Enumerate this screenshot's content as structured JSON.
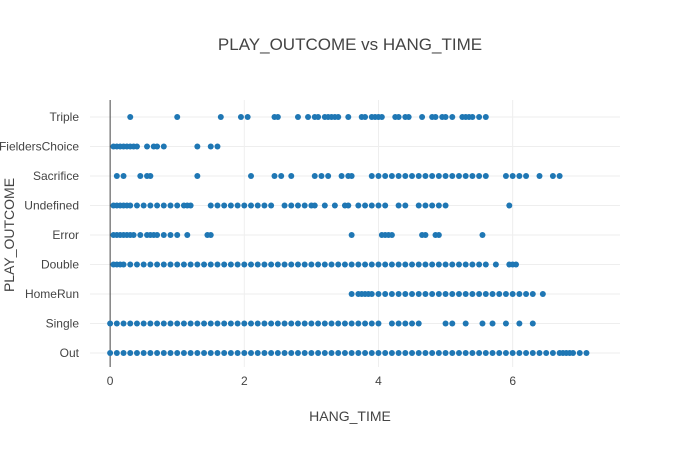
{
  "chart_data": {
    "type": "scatter",
    "title": "PLAY_OUTCOME vs HANG_TIME",
    "xlabel": "HANG_TIME",
    "ylabel": "PLAY_OUTCOME",
    "xlim": [
      -0.3,
      7.6
    ],
    "x_ticks": [
      0,
      2,
      4,
      6
    ],
    "categories": [
      "Out",
      "Single",
      "HomeRun",
      "Double",
      "Error",
      "Undefined",
      "Sacrifice",
      "FieldersChoice",
      "Triple"
    ],
    "grid": true,
    "legend": "none",
    "marker_color": "#1f77b4",
    "series": [
      {
        "category": "Triple",
        "x": [
          0.3,
          1.0,
          1.65,
          1.95,
          2.05,
          2.45,
          2.5,
          2.8,
          2.95,
          3.05,
          3.1,
          3.2,
          3.25,
          3.3,
          3.35,
          3.4,
          3.55,
          3.75,
          3.8,
          3.9,
          3.95,
          4.0,
          4.05,
          4.25,
          4.3,
          4.4,
          4.45,
          4.65,
          4.8,
          4.85,
          4.95,
          5.0,
          5.1,
          5.25,
          5.3,
          5.35,
          5.4,
          5.5,
          5.6
        ]
      },
      {
        "category": "FieldersChoice",
        "x": [
          0.05,
          0.1,
          0.15,
          0.2,
          0.25,
          0.3,
          0.35,
          0.4,
          0.55,
          0.65,
          0.7,
          0.8,
          1.3,
          1.5,
          1.6
        ]
      },
      {
        "category": "Sacrifice",
        "x": [
          0.1,
          0.2,
          0.45,
          0.55,
          0.6,
          1.3,
          2.1,
          2.45,
          2.55,
          2.7,
          3.05,
          3.15,
          3.25,
          3.45,
          3.55,
          3.6,
          3.9,
          4.0,
          4.1,
          4.2,
          4.3,
          4.4,
          4.5,
          4.6,
          4.7,
          4.8,
          4.9,
          5.0,
          5.1,
          5.2,
          5.3,
          5.4,
          5.5,
          5.6,
          5.9,
          6.0,
          6.1,
          6.2,
          6.4,
          6.6,
          6.7
        ]
      },
      {
        "category": "Undefined",
        "x": [
          0.05,
          0.1,
          0.15,
          0.2,
          0.25,
          0.3,
          0.4,
          0.5,
          0.6,
          0.7,
          0.8,
          0.9,
          1.0,
          1.1,
          1.15,
          1.2,
          1.5,
          1.6,
          1.7,
          1.8,
          1.9,
          2.0,
          2.1,
          2.2,
          2.3,
          2.4,
          2.6,
          2.7,
          2.8,
          2.9,
          3.0,
          3.05,
          3.2,
          3.35,
          3.5,
          3.55,
          3.7,
          3.8,
          3.9,
          4.0,
          4.1,
          4.3,
          4.4,
          4.6,
          4.7,
          4.8,
          4.9,
          5.0,
          5.95
        ]
      },
      {
        "category": "Error",
        "x": [
          0.05,
          0.1,
          0.15,
          0.2,
          0.25,
          0.3,
          0.35,
          0.45,
          0.55,
          0.6,
          0.65,
          0.7,
          0.8,
          0.9,
          1.0,
          1.15,
          1.45,
          1.5,
          3.6,
          4.05,
          4.1,
          4.15,
          4.2,
          4.65,
          4.7,
          4.85,
          4.9,
          5.55
        ]
      },
      {
        "category": "Double",
        "x": [
          0.05,
          0.1,
          0.15,
          0.2,
          0.3,
          0.4,
          0.5,
          0.6,
          0.7,
          0.8,
          0.9,
          1.0,
          1.1,
          1.2,
          1.3,
          1.4,
          1.5,
          1.6,
          1.7,
          1.8,
          1.9,
          2.0,
          2.1,
          2.2,
          2.3,
          2.4,
          2.5,
          2.6,
          2.7,
          2.8,
          2.9,
          3.0,
          3.1,
          3.2,
          3.3,
          3.4,
          3.5,
          3.6,
          3.7,
          3.8,
          3.9,
          4.0,
          4.1,
          4.2,
          4.3,
          4.4,
          4.5,
          4.6,
          4.7,
          4.8,
          4.9,
          5.0,
          5.1,
          5.2,
          5.3,
          5.4,
          5.5,
          5.6,
          5.75,
          5.95,
          6.0,
          6.05
        ]
      },
      {
        "category": "HomeRun",
        "x": [
          3.6,
          3.7,
          3.75,
          3.8,
          3.85,
          3.9,
          4.0,
          4.1,
          4.2,
          4.3,
          4.4,
          4.5,
          4.6,
          4.7,
          4.8,
          4.9,
          5.0,
          5.1,
          5.2,
          5.3,
          5.4,
          5.5,
          5.6,
          5.7,
          5.8,
          5.9,
          6.0,
          6.1,
          6.2,
          6.3,
          6.45
        ]
      },
      {
        "category": "Single",
        "x": [
          0.0,
          0.1,
          0.2,
          0.3,
          0.4,
          0.5,
          0.6,
          0.7,
          0.8,
          0.9,
          1.0,
          1.1,
          1.2,
          1.3,
          1.4,
          1.5,
          1.6,
          1.7,
          1.8,
          1.9,
          2.0,
          2.1,
          2.2,
          2.3,
          2.4,
          2.5,
          2.6,
          2.7,
          2.8,
          2.9,
          3.0,
          3.1,
          3.2,
          3.3,
          3.4,
          3.5,
          3.6,
          3.7,
          3.8,
          3.9,
          4.0,
          4.2,
          4.3,
          4.4,
          4.5,
          4.6,
          5.0,
          5.1,
          5.3,
          5.55,
          5.7,
          5.9,
          6.1,
          6.3
        ]
      },
      {
        "category": "Out",
        "x": [
          0.0,
          0.1,
          0.2,
          0.3,
          0.4,
          0.5,
          0.6,
          0.7,
          0.8,
          0.9,
          1.0,
          1.1,
          1.2,
          1.3,
          1.4,
          1.5,
          1.6,
          1.7,
          1.8,
          1.9,
          2.0,
          2.1,
          2.2,
          2.3,
          2.4,
          2.5,
          2.6,
          2.7,
          2.8,
          2.9,
          3.0,
          3.1,
          3.2,
          3.3,
          3.4,
          3.5,
          3.6,
          3.7,
          3.8,
          3.9,
          4.0,
          4.1,
          4.2,
          4.3,
          4.4,
          4.5,
          4.6,
          4.7,
          4.8,
          4.9,
          5.0,
          5.1,
          5.2,
          5.3,
          5.4,
          5.5,
          5.6,
          5.7,
          5.8,
          5.9,
          6.0,
          6.1,
          6.2,
          6.3,
          6.4,
          6.5,
          6.6,
          6.7,
          6.75,
          6.8,
          6.85,
          6.9,
          7.0,
          7.1
        ]
      }
    ]
  }
}
